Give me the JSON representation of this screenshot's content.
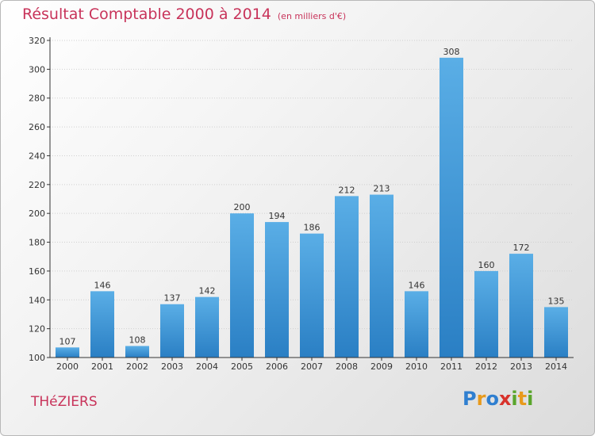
{
  "header": {
    "title": "Résultat Comptable 2000 à 2014",
    "subtitle": "(en milliers d'€)"
  },
  "footer": {
    "commune": "THéZIERS",
    "logo": {
      "text": "Proxiti",
      "letters": [
        {
          "char": "P",
          "color": "#2f7fd0"
        },
        {
          "char": "r",
          "color": "#e89a1c"
        },
        {
          "char": "o",
          "color": "#2f7fd0"
        },
        {
          "char": "x",
          "color": "#d8322b"
        },
        {
          "char": "i",
          "color": "#5aa52c"
        },
        {
          "char": "t",
          "color": "#e89a1c"
        },
        {
          "char": "i",
          "color": "#5aa52c"
        }
      ]
    }
  },
  "colors": {
    "bar_light": "#5aaee6",
    "bar_dark": "#2a7fc4",
    "axis": "#333333",
    "grid": "#d0d0d0",
    "title": "#c8335a"
  },
  "chart_data": {
    "type": "bar",
    "title": "Résultat Comptable 2000 à 2014",
    "subtitle": "(en milliers d'€)",
    "categories": [
      "2000",
      "2001",
      "2002",
      "2003",
      "2004",
      "2005",
      "2006",
      "2007",
      "2008",
      "2009",
      "2010",
      "2011",
      "2012",
      "2013",
      "2014"
    ],
    "values": [
      107,
      146,
      108,
      137,
      142,
      200,
      194,
      186,
      212,
      213,
      146,
      308,
      160,
      172,
      135
    ],
    "data_labels": [
      "107",
      "146",
      "108",
      "137",
      "142",
      "200",
      "194",
      "186",
      "212",
      "213",
      "146",
      "308",
      "160",
      "172",
      "135"
    ],
    "ylim": [
      100,
      320
    ],
    "yticks": [
      100,
      120,
      140,
      160,
      180,
      200,
      220,
      240,
      260,
      280,
      300,
      320
    ],
    "xlabel": "",
    "ylabel": "",
    "grid": true
  }
}
